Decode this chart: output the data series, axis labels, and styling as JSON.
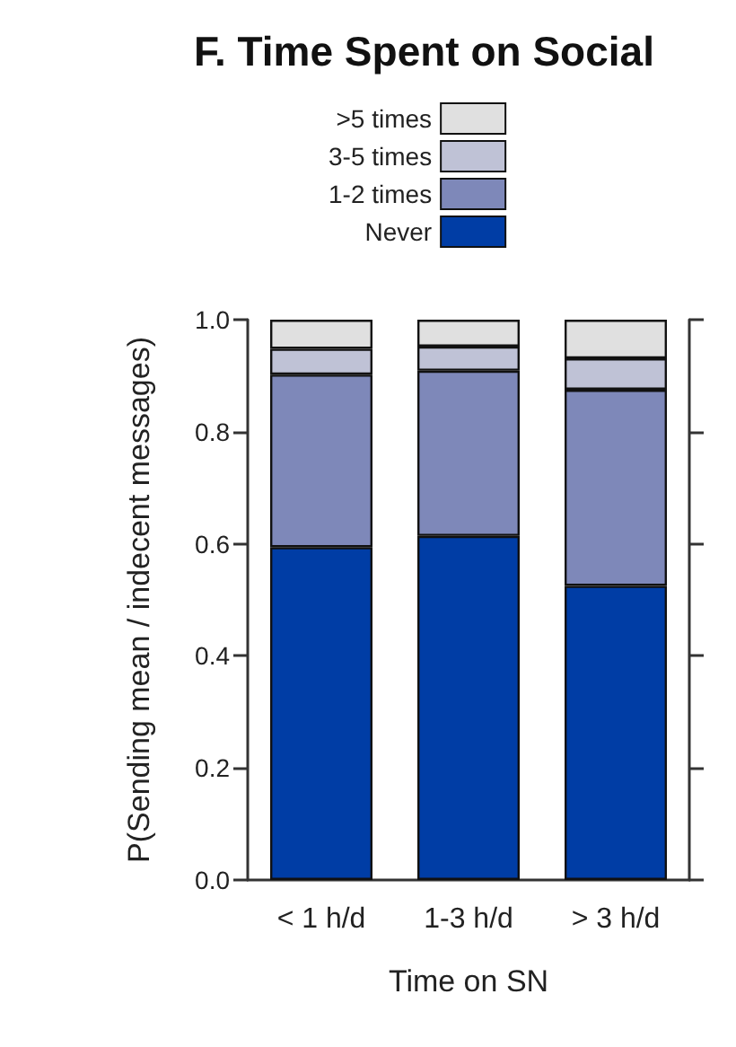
{
  "chart_data": {
    "type": "bar",
    "title": "F. Time Spent on Social",
    "xlabel": "Time on SN",
    "ylabel": "P(Sending mean / indecent messages)",
    "categories": [
      "< 1 h/d",
      "1-3 h/d",
      "> 3 h/d"
    ],
    "stacked": true,
    "legend": "top",
    "ylim": [
      0,
      1
    ],
    "yticks": [
      {
        "value": 0,
        "label": "0.0"
      },
      0.2,
      0.4,
      0.6,
      0.8,
      {
        "value": 1,
        "label": "1.0"
      }
    ],
    "series": [
      {
        "name": "Never",
        "color": "#003da5",
        "values": [
          0.594,
          0.614,
          0.525
        ]
      },
      {
        "name": "1-2 times",
        "color": "#7e88b9",
        "values": [
          0.308,
          0.295,
          0.35
        ]
      },
      {
        "name": "3-5 times",
        "color": "#bfc2d6",
        "values": [
          0.046,
          0.043,
          0.056
        ]
      },
      {
        "name": ">5 times",
        "color": "#e0e0e0",
        "values": [
          0.052,
          0.048,
          0.069
        ]
      }
    ]
  }
}
